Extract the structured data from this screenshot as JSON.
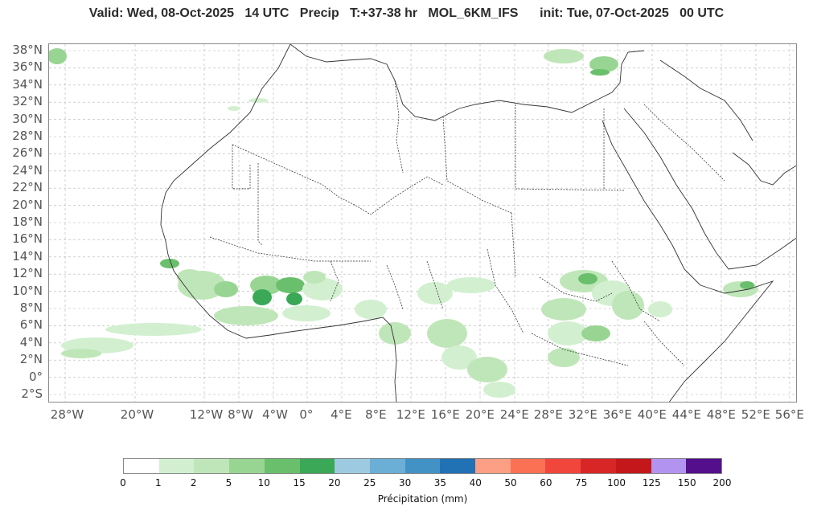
{
  "header": {
    "title": "Valid: Wed, 08-Oct-2025   14 UTC   Precip   T:+37-38 hr   MOL_6KM_IFS      init: Tue, 07-Oct-2025   00 UTC"
  },
  "map": {
    "lat_labels": [
      "38°N",
      "36°N",
      "34°N",
      "32°N",
      "30°N",
      "28°N",
      "26°N",
      "24°N",
      "22°N",
      "20°N",
      "18°N",
      "16°N",
      "14°N",
      "12°N",
      "10°N",
      "8°N",
      "6°N",
      "4°N",
      "2°N",
      "0°",
      "2°S"
    ],
    "lon_labels": [
      "28°W",
      "20°W",
      "12°W",
      "8°W",
      "4°W",
      "0°",
      "4°E",
      "8°E",
      "12°E",
      "16°E",
      "20°E",
      "24°E",
      "28°E",
      "32°E",
      "36°E",
      "40°E",
      "44°E",
      "48°E",
      "52°E",
      "56°E"
    ],
    "colors": {
      "coast": "#333333",
      "border": "#222222",
      "grid": "#b5b5b5"
    }
  },
  "colorbar": {
    "label": "Précipitation (mm)",
    "ticks": [
      "0",
      "1",
      "2",
      "5",
      "10",
      "15",
      "20",
      "25",
      "30",
      "35",
      "40",
      "50",
      "60",
      "75",
      "100",
      "125",
      "150",
      "200"
    ],
    "colors": [
      "#ffffff",
      "#d2f0d0",
      "#bfe6b8",
      "#98d592",
      "#6abf6c",
      "#3aa857",
      "#9ecae1",
      "#6baed6",
      "#4292c6",
      "#2171b5",
      "#fc9f85",
      "#fb7154",
      "#f1463c",
      "#d82526",
      "#c4171c",
      "#b294f0",
      "#540f8c"
    ]
  }
}
